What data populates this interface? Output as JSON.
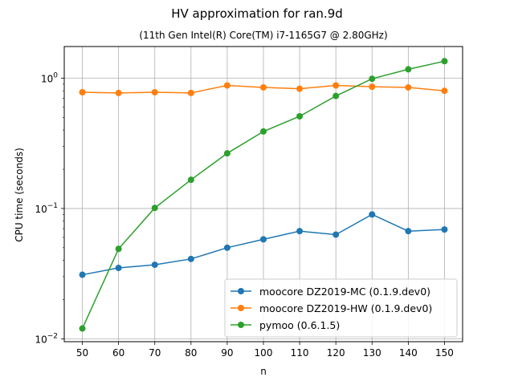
{
  "chart_data": {
    "type": "line",
    "title": "HV approximation for ran.9d",
    "subtitle": "(11th Gen Intel(R) Core(TM) i7-1165G7 @ 2.80GHz)",
    "xlabel": "n",
    "ylabel": "CPU time (seconds)",
    "yscale": "log",
    "x": [
      50,
      60,
      70,
      80,
      90,
      100,
      110,
      120,
      130,
      140,
      150
    ],
    "xticks": [
      "50",
      "60",
      "70",
      "80",
      "90",
      "100",
      "110",
      "120",
      "130",
      "140",
      "150"
    ],
    "yticks": [
      {
        "value": 0.01,
        "base": "10",
        "exp": "−2"
      },
      {
        "value": 0.1,
        "base": "10",
        "exp": "−1"
      },
      {
        "value": 1,
        "base": "10",
        "exp": "0"
      }
    ],
    "xlim": [
      45,
      155
    ],
    "ylim": [
      0.0095,
      1.75
    ],
    "grid": true,
    "legend_position": "lower-right",
    "series": [
      {
        "name": "moocore DZ2019-MC (0.1.9.dev0)",
        "color": "#1f77b4",
        "values": [
          0.031,
          0.035,
          0.037,
          0.041,
          0.05,
          0.058,
          0.067,
          0.063,
          0.09,
          0.067,
          0.069
        ]
      },
      {
        "name": "moocore DZ2019-HW (0.1.9.dev0)",
        "color": "#ff7f0e",
        "values": [
          0.78,
          0.77,
          0.78,
          0.77,
          0.88,
          0.85,
          0.83,
          0.88,
          0.86,
          0.85,
          0.8
        ]
      },
      {
        "name": "pymoo (0.6.1.5)",
        "color": "#2ca02c",
        "values": [
          0.012,
          0.049,
          0.101,
          0.166,
          0.265,
          0.39,
          0.51,
          0.73,
          0.99,
          1.17,
          1.35
        ]
      }
    ]
  }
}
